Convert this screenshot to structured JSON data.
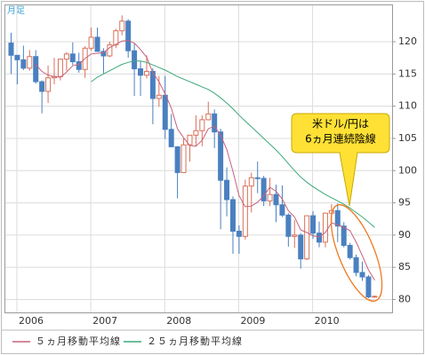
{
  "chart_data": {
    "type": "candlestick",
    "label": "月足",
    "annotation": [
      "米ドル/円は",
      "6ヵ月連続陰線"
    ],
    "categories": [
      null,
      "2006",
      null,
      null,
      null,
      null,
      null,
      null,
      null,
      null,
      null,
      null,
      null,
      "2007",
      null,
      null,
      null,
      null,
      null,
      null,
      null,
      null,
      null,
      null,
      null,
      "2008",
      null,
      null,
      null,
      null,
      null,
      null,
      null,
      null,
      null,
      null,
      null,
      "2009",
      null,
      null,
      null,
      null,
      null,
      null,
      null,
      null,
      null,
      null,
      null,
      "2010",
      null,
      null,
      null,
      null,
      null,
      null,
      null,
      null,
      null,
      null
    ],
    "open": [
      119.8,
      117.9,
      117.2,
      115.9,
      117.7,
      113.8,
      112.3,
      114.4,
      114.6,
      117.3,
      118.1,
      116.9,
      115.7,
      119.0,
      120.7,
      118.5,
      117.8,
      119.5,
      121.7,
      123.2,
      118.6,
      115.8,
      114.8,
      115.4,
      111.2,
      111.7,
      106.4,
      103.7,
      99.7,
      104.0,
      105.5,
      106.2,
      107.9,
      108.8,
      106.0,
      98.5,
      95.5,
      90.6,
      89.8,
      97.6,
      98.9,
      98.8,
      95.3,
      96.3,
      94.7,
      93.1,
      89.8,
      90.0,
      86.3,
      93.0,
      90.3,
      88.9,
      93.4,
      93.8,
      91.4,
      88.4,
      86.5,
      84.2,
      83.5,
      80.4
    ],
    "high": [
      121.4,
      117.9,
      119.4,
      118.7,
      118.7,
      114.0,
      116.3,
      117.5,
      117.4,
      118.4,
      119.9,
      118.3,
      119.3,
      122.2,
      122.2,
      119.0,
      120.0,
      122.0,
      124.1,
      123.5,
      119.7,
      117.0,
      117.9,
      115.9,
      114.7,
      114.7,
      108.8,
      103.8,
      105.0,
      105.5,
      108.6,
      108.6,
      110.7,
      109.5,
      106.5,
      100.5,
      96.0,
      91.5,
      98.6,
      99.7,
      101.4,
      99.2,
      98.9,
      97.8,
      97.7,
      93.4,
      92.3,
      90.3,
      93.0,
      93.7,
      92.1,
      93.5,
      94.8,
      94.9,
      92.0,
      88.8,
      87.0,
      85.9,
      83.8,
      80.6
    ],
    "low": [
      115.0,
      113.4,
      115.6,
      115.5,
      113.5,
      108.9,
      110.5,
      113.4,
      114.0,
      115.5,
      116.4,
      115.2,
      114.4,
      118.6,
      118.6,
      115.1,
      117.6,
      119.0,
      121.0,
      117.5,
      111.6,
      111.6,
      114.3,
      107.2,
      109.9,
      104.9,
      103.7,
      95.7,
      99.7,
      101.4,
      103.8,
      103.8,
      107.8,
      103.5,
      90.9,
      92.9,
      87.1,
      87.1,
      89.3,
      93.5,
      96.5,
      94.5,
      94.5,
      92.0,
      92.8,
      88.2,
      88.0,
      84.8,
      86.1,
      89.4,
      88.1,
      88.1,
      92.0,
      88.9,
      88.1,
      86.2,
      83.6,
      82.9,
      80.2,
      80.3
    ],
    "close": [
      117.9,
      117.2,
      115.9,
      117.7,
      113.8,
      112.3,
      114.4,
      114.6,
      117.3,
      118.1,
      116.9,
      115.7,
      119.0,
      120.7,
      118.5,
      117.8,
      119.5,
      121.7,
      123.2,
      118.6,
      115.8,
      114.8,
      115.4,
      111.2,
      111.7,
      106.4,
      103.7,
      99.7,
      104.0,
      105.5,
      106.2,
      107.9,
      108.8,
      106.0,
      98.5,
      95.5,
      90.6,
      89.8,
      97.6,
      98.9,
      98.8,
      95.3,
      96.3,
      94.7,
      93.1,
      89.8,
      90.0,
      86.3,
      93.0,
      90.3,
      88.9,
      93.4,
      93.8,
      91.4,
      88.4,
      86.5,
      84.2,
      83.5,
      80.4,
      80.5
    ],
    "up_color": "#d9705a",
    "down_color": "#4a80c0",
    "series": [
      {
        "name": "５ヵ月移動平均線",
        "color": "#c8607a",
        "values": [
          null,
          null,
          null,
          null,
          116.5,
          115.4,
          114.8,
          114.6,
          114.5,
          115.3,
          116.3,
          116.5,
          117.4,
          118.1,
          118.2,
          118.3,
          119.1,
          119.6,
          120.1,
          120.2,
          119.8,
          118.8,
          117.6,
          115.2,
          113.8,
          111.9,
          109.7,
          106.5,
          105.1,
          103.9,
          103.8,
          104.7,
          106.5,
          106.9,
          105.5,
          103.3,
          99.9,
          96.1,
          94.4,
          94.5,
          95.1,
          96.1,
          97.4,
          96.8,
          95.6,
          93.8,
          92.8,
          90.8,
          90.4,
          89.9,
          89.7,
          90.4,
          91.9,
          91.6,
          91.2,
          90.7,
          88.9,
          86.8,
          84.6,
          83.0
        ]
      },
      {
        "name": "２５ヵ月移動平均線",
        "color": "#3aaa78",
        "values": [
          null,
          null,
          null,
          null,
          null,
          null,
          null,
          null,
          null,
          null,
          null,
          null,
          null,
          113.8,
          114.5,
          115.0,
          115.5,
          116.0,
          116.5,
          116.8,
          117.0,
          117.0,
          116.8,
          116.4,
          116.0,
          115.6,
          115.1,
          114.6,
          114.2,
          113.8,
          113.4,
          113.0,
          112.6,
          112.0,
          111.3,
          110.5,
          109.6,
          108.6,
          107.7,
          106.8,
          105.9,
          105.0,
          104.1,
          103.2,
          102.2,
          101.1,
          100.0,
          99.0,
          98.2,
          97.5,
          96.9,
          96.3,
          95.8,
          95.3,
          94.8,
          94.2,
          93.5,
          92.8,
          92.0,
          91.2
        ]
      }
    ],
    "ylim": [
      78,
      124
    ],
    "yticks": [
      80,
      85,
      90,
      95,
      100,
      105,
      110,
      115,
      120
    ],
    "grid": true
  }
}
